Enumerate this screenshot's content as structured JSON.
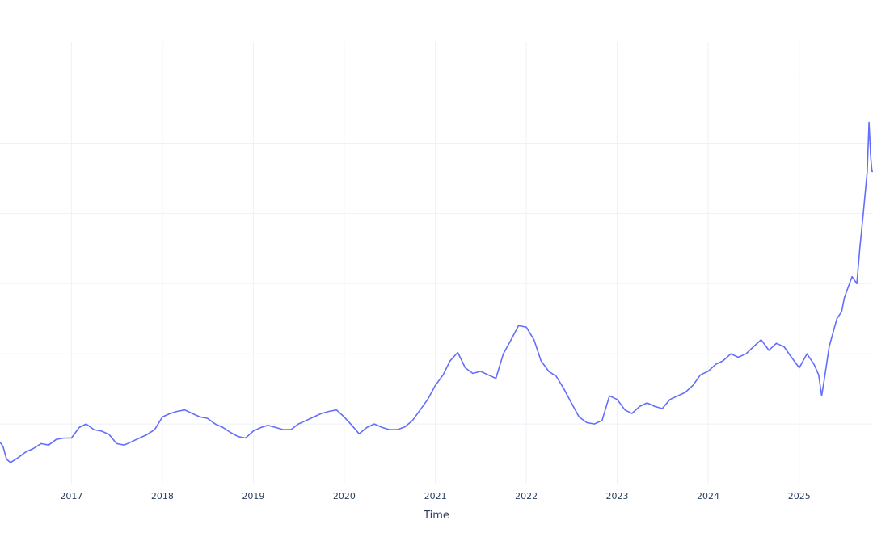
{
  "chart_data": {
    "type": "line",
    "title": "",
    "xlabel": "Time",
    "ylabel": "",
    "grid": true,
    "legend": "none",
    "series_color": "#636efa",
    "grid_color": "#eef1f5",
    "x_ticks": [
      "2017",
      "2018",
      "2019",
      "2020",
      "2021",
      "2022",
      "2023",
      "2024",
      "2025"
    ],
    "xlim": [
      "2016-03-20",
      "2025-10-24"
    ],
    "ylim": [
      0,
      6.6
    ],
    "y_gridlines": [
      1,
      2,
      3,
      4,
      5,
      6
    ],
    "series": [
      {
        "x": [
          "2016-03-20",
          "2016-04-01",
          "2016-04-15",
          "2016-05-01",
          "2016-06-01",
          "2016-07-01",
          "2016-08-01",
          "2016-09-01",
          "2016-10-01",
          "2016-11-01",
          "2016-12-01",
          "2017-01-01",
          "2017-02-01",
          "2017-03-01",
          "2017-04-01",
          "2017-05-01",
          "2017-06-01",
          "2017-07-01",
          "2017-08-01",
          "2017-09-01",
          "2017-10-01",
          "2017-11-01",
          "2017-12-01",
          "2018-01-01",
          "2018-02-01",
          "2018-03-01",
          "2018-04-01",
          "2018-05-01",
          "2018-06-01",
          "2018-07-01",
          "2018-08-01",
          "2018-09-01",
          "2018-10-01",
          "2018-11-01",
          "2018-12-01",
          "2019-01-01",
          "2019-02-01",
          "2019-03-01",
          "2019-04-01",
          "2019-05-01",
          "2019-06-01",
          "2019-07-01",
          "2019-08-01",
          "2019-09-01",
          "2019-10-01",
          "2019-11-01",
          "2019-12-01",
          "2020-01-01",
          "2020-02-01",
          "2020-03-01",
          "2020-04-01",
          "2020-05-01",
          "2020-06-01",
          "2020-07-01",
          "2020-08-01",
          "2020-09-01",
          "2020-10-01",
          "2020-11-01",
          "2020-12-01",
          "2021-01-01",
          "2021-02-01",
          "2021-03-01",
          "2021-04-01",
          "2021-05-01",
          "2021-06-01",
          "2021-07-01",
          "2021-08-01",
          "2021-09-01",
          "2021-10-01",
          "2021-11-01",
          "2021-12-01",
          "2022-01-01",
          "2022-02-01",
          "2022-03-01",
          "2022-04-01",
          "2022-05-01",
          "2022-06-01",
          "2022-07-01",
          "2022-08-01",
          "2022-09-01",
          "2022-10-01",
          "2022-11-01",
          "2022-12-01",
          "2023-01-01",
          "2023-02-01",
          "2023-03-01",
          "2023-04-01",
          "2023-05-01",
          "2023-06-01",
          "2023-07-01",
          "2023-08-01",
          "2023-09-01",
          "2023-10-01",
          "2023-11-01",
          "2023-12-01",
          "2024-01-01",
          "2024-02-01",
          "2024-03-01",
          "2024-04-01",
          "2024-05-01",
          "2024-06-01",
          "2024-07-01",
          "2024-08-01",
          "2024-09-01",
          "2024-10-01",
          "2024-11-01",
          "2024-12-01",
          "2025-01-01",
          "2025-02-01",
          "2025-03-01",
          "2025-03-20",
          "2025-04-01",
          "2025-04-10",
          "2025-05-01",
          "2025-06-01",
          "2025-06-20",
          "2025-07-01",
          "2025-08-01",
          "2025-08-20",
          "2025-09-01",
          "2025-09-15",
          "2025-10-01",
          "2025-10-08",
          "2025-10-15",
          "2025-10-20",
          "2025-10-24"
        ],
        "y": [
          0.74,
          0.68,
          0.5,
          0.45,
          0.52,
          0.6,
          0.65,
          0.72,
          0.7,
          0.78,
          0.8,
          0.8,
          0.95,
          1.0,
          0.92,
          0.9,
          0.85,
          0.72,
          0.7,
          0.75,
          0.8,
          0.85,
          0.92,
          1.1,
          1.15,
          1.18,
          1.2,
          1.15,
          1.1,
          1.08,
          1.0,
          0.95,
          0.88,
          0.82,
          0.8,
          0.9,
          0.95,
          0.98,
          0.95,
          0.92,
          0.92,
          1.0,
          1.05,
          1.1,
          1.15,
          1.18,
          1.2,
          1.1,
          0.98,
          0.86,
          0.95,
          1.0,
          0.95,
          0.92,
          0.92,
          0.96,
          1.05,
          1.2,
          1.35,
          1.55,
          1.7,
          1.9,
          2.02,
          1.8,
          1.72,
          1.75,
          1.7,
          1.65,
          2.0,
          2.2,
          2.4,
          2.38,
          2.2,
          1.9,
          1.75,
          1.68,
          1.5,
          1.3,
          1.1,
          1.02,
          1.0,
          1.05,
          1.4,
          1.35,
          1.2,
          1.15,
          1.25,
          1.3,
          1.25,
          1.22,
          1.35,
          1.4,
          1.45,
          1.55,
          1.7,
          1.75,
          1.85,
          1.9,
          2.0,
          1.95,
          2.0,
          2.1,
          2.2,
          2.05,
          2.15,
          2.1,
          1.95,
          1.8,
          2.0,
          1.85,
          1.7,
          1.4,
          1.6,
          2.1,
          2.5,
          2.6,
          2.8,
          3.1,
          3.0,
          3.5,
          4.0,
          4.6,
          5.3,
          4.8,
          4.6,
          4.6
        ]
      }
    ]
  }
}
